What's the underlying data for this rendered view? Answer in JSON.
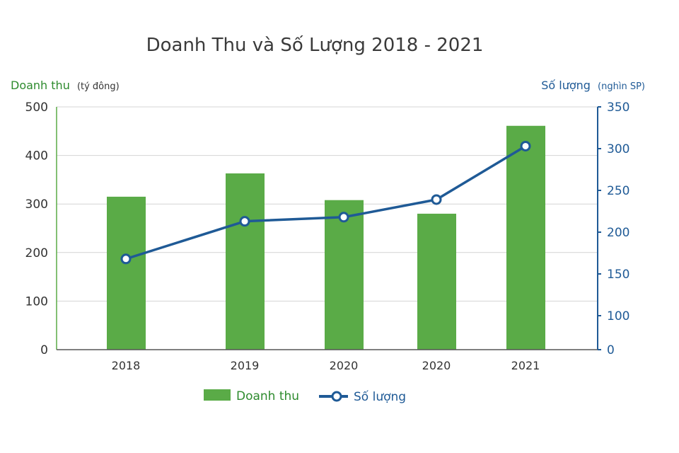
{
  "chart_data": {
    "type": "bar+line",
    "title": "Doanh Thu và Số Lượng 2018 - 2021",
    "categories": [
      "2018",
      "2019",
      "2020",
      "2020",
      "2021"
    ],
    "y_left": {
      "label": "Doanh thu",
      "unit": "(tý đông)",
      "ylim": [
        0,
        500
      ],
      "ticks": [
        0,
        100,
        200,
        300,
        400,
        500
      ],
      "color": "#2e8b2e"
    },
    "y_right": {
      "label": "Số lượng",
      "unit": "(nghìn SP)",
      "ticks": [
        0,
        100,
        150,
        200,
        250,
        300,
        350
      ],
      "color": "#1f5a96"
    },
    "series": [
      {
        "name": "Doanh thu",
        "type": "bar",
        "axis": "left",
        "color": "#5aab47",
        "values": [
          315,
          363,
          308,
          280,
          461
        ]
      },
      {
        "name": "Số lượng",
        "type": "line",
        "axis": "right",
        "color": "#1f5a96",
        "values": [
          168,
          213,
          218,
          239,
          303
        ]
      }
    ],
    "grid": true,
    "legend": "bottom"
  }
}
